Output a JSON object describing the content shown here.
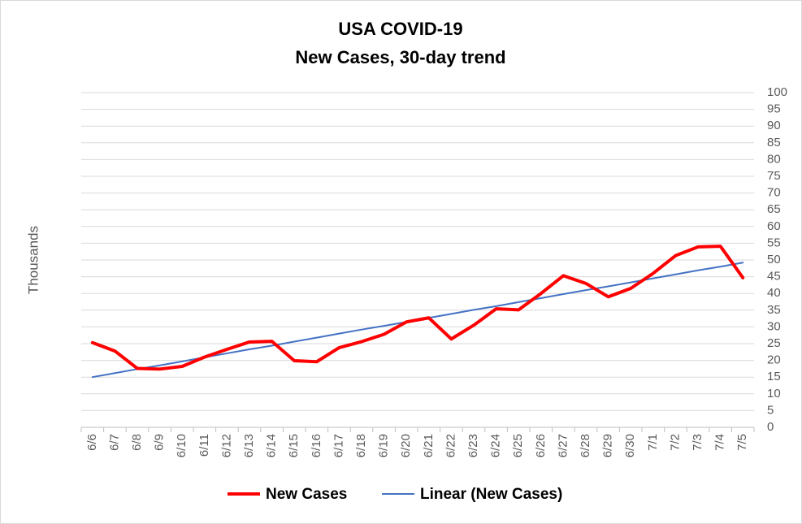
{
  "chart_data": {
    "type": "line",
    "title": "USA COVID-19",
    "subtitle": "New Cases, 30-day trend",
    "y_label": "Thousands",
    "categories": [
      "6/6",
      "6/7",
      "6/8",
      "6/9",
      "6/10",
      "6/11",
      "6/12",
      "6/13",
      "6/14",
      "6/15",
      "6/16",
      "6/17",
      "6/18",
      "6/19",
      "6/20",
      "6/21",
      "6/22",
      "6/23",
      "6/24",
      "6/25",
      "6/26",
      "6/27",
      "6/28",
      "6/29",
      "6/30",
      "7/1",
      "7/2",
      "7/3",
      "7/4",
      "7/5"
    ],
    "series": [
      {
        "name": "New Cases",
        "color": "#ff0000",
        "values": [
          25.3,
          22.8,
          17.6,
          17.4,
          18.2,
          21,
          23.3,
          25.5,
          25.7,
          19.9,
          19.6,
          23.8,
          25.6,
          27.8,
          31.5,
          32.7,
          26.4,
          30.5,
          35.4,
          35.1,
          40,
          45.3,
          43,
          39,
          41.5,
          46,
          51.3,
          53.9,
          54.1,
          44.7
        ]
      },
      {
        "name": "Linear (New Cases)",
        "color": "#4472c4",
        "values": [
          15,
          16.2,
          17.4,
          18.5,
          19.7,
          20.9,
          22.1,
          23.3,
          24.4,
          25.6,
          26.8,
          28,
          29.2,
          30.3,
          31.5,
          32.7,
          33.9,
          35.1,
          36.2,
          37.4,
          38.6,
          39.8,
          41,
          42.1,
          43.3,
          44.5,
          45.7,
          46.9,
          48,
          49.2
        ]
      }
    ],
    "ylim": [
      0,
      100
    ],
    "yticks": [
      0,
      5,
      10,
      15,
      20,
      25,
      30,
      35,
      40,
      45,
      50,
      55,
      60,
      65,
      70,
      75,
      80,
      85,
      90,
      95,
      100
    ],
    "grid": true,
    "legend": "bottom"
  }
}
